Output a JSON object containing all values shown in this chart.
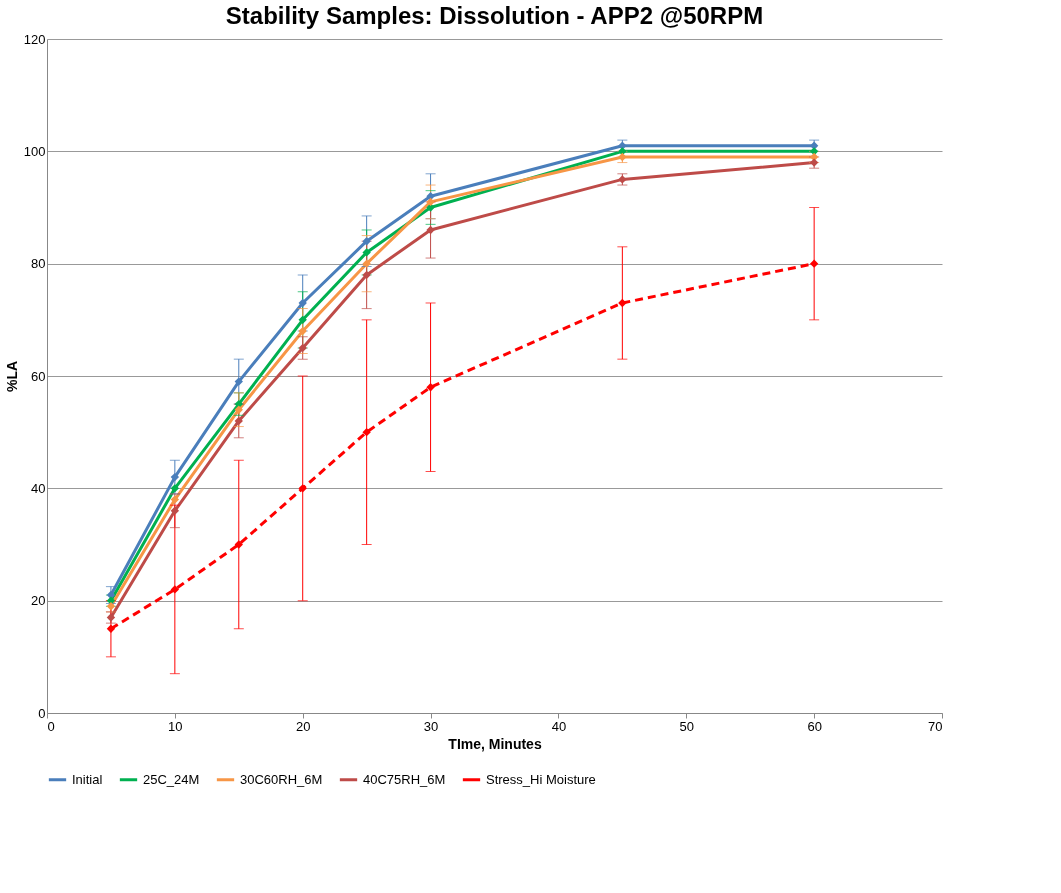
{
  "chart_data": {
    "type": "line",
    "title": "Stability Samples: Dissolution - APP2 @50RPM",
    "xlabel": "TIme, Minutes",
    "ylabel": "%LA",
    "x": [
      5,
      10,
      15,
      20,
      25,
      30,
      45,
      60
    ],
    "xlim": [
      0,
      70
    ],
    "xticks": [
      0,
      10,
      20,
      30,
      40,
      50,
      60,
      70
    ],
    "ylim": [
      0,
      120
    ],
    "yticks": [
      0,
      20,
      40,
      60,
      80,
      100,
      120
    ],
    "grid": "y",
    "legend": "bottom",
    "marker": "diamond",
    "series": [
      {
        "name": "Initial",
        "color": "#4a7ebb",
        "line_style": "solid",
        "values": [
          21,
          42,
          59,
          73,
          84,
          92,
          101,
          101
        ],
        "errors": [
          1.5,
          3,
          4,
          5,
          4.5,
          4,
          1,
          1
        ]
      },
      {
        "name": "25C_24M",
        "color": "#00b050",
        "line_style": "solid",
        "values": [
          20,
          40,
          55,
          70,
          82,
          90,
          100,
          100
        ],
        "errors": [
          1,
          null,
          2,
          5,
          4,
          3,
          null,
          null
        ]
      },
      {
        "name": "30C60RH_6M",
        "color": "#f79646",
        "line_style": "solid",
        "values": [
          19,
          38,
          54,
          68,
          80,
          91,
          99,
          99
        ],
        "errors": [
          1,
          null,
          3,
          4,
          5,
          3,
          1,
          1
        ]
      },
      {
        "name": "40C75RH_6M",
        "color": "#be4b48",
        "line_style": "solid",
        "values": [
          17,
          36,
          52,
          65,
          78,
          86,
          95,
          98
        ],
        "errors": [
          1,
          3,
          3,
          2,
          6,
          5,
          1,
          1
        ]
      },
      {
        "name": "Stress_Hi Moisture",
        "color": "#ff0000",
        "line_style": "dashed",
        "values": [
          15,
          22,
          30,
          40,
          50,
          58,
          73,
          80
        ],
        "errors": [
          5,
          15,
          15,
          20,
          20,
          15,
          10,
          10
        ]
      }
    ]
  }
}
